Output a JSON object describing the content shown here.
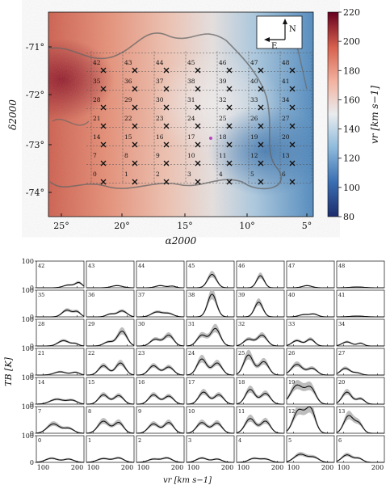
{
  "top_panel": {
    "ylabel": "δ2000",
    "xlabel": "α2000",
    "y_ticks": [
      "-71°",
      "-72°",
      "-73°",
      "-74°"
    ],
    "x_ticks": [
      "25°",
      "20°",
      "15°",
      "10°",
      "5°"
    ],
    "compass": {
      "north": "N",
      "east": "E"
    },
    "colorbar": {
      "label": "vr [km s−1]",
      "ticks": [
        "220",
        "200",
        "180",
        "160",
        "140",
        "120",
        "100",
        "80"
      ],
      "range": [
        80,
        220
      ],
      "colors": [
        "#1c2c6d",
        "#3a6fb2",
        "#8fbbdc",
        "#e9ecef",
        "#f3b3a0",
        "#d6604d",
        "#67001f"
      ]
    },
    "grid_numbers": [
      [
        42,
        43,
        44,
        45,
        46,
        47,
        48
      ],
      [
        35,
        36,
        37,
        38,
        39,
        40,
        41
      ],
      [
        28,
        29,
        30,
        31,
        32,
        33,
        34
      ],
      [
        21,
        22,
        23,
        24,
        25,
        26,
        27
      ],
      [
        14,
        15,
        16,
        17,
        18,
        19,
        20
      ],
      [
        7,
        8,
        9,
        10,
        11,
        12,
        13
      ],
      [
        0,
        1,
        2,
        3,
        4,
        5,
        6
      ]
    ]
  },
  "spectra": {
    "ylabel": "TB [K]",
    "xlabel": "vr [km s−1]",
    "y_ticks": [
      "100",
      "0"
    ],
    "x_ticks": [
      "100",
      "200"
    ],
    "ylim": [
      0,
      100
    ],
    "xlim": [
      80,
      220
    ]
  },
  "chart_data": [
    {
      "type": "heatmap",
      "title": "",
      "xlabel": "α2000",
      "ylabel": "δ2000",
      "xlim": [
        26.5,
        4.5
      ],
      "ylim": [
        -74.6,
        -70.3
      ],
      "colorbar_label": "vr [km s−1]",
      "colorbar_range": [
        80,
        220
      ],
      "field_summary": "velocity field ~175-195 km/s on east (left) side, decreasing to ~110-125 km/s on west (right) side"
    },
    {
      "type": "line",
      "title": "",
      "xlabel": "vr [km s−1]",
      "ylabel": "TB [K]",
      "xlim": [
        80,
        220
      ],
      "ylim": [
        0,
        100
      ],
      "panels": [
        {
          "id": 0,
          "peaks": [
            [
              125,
              15,
              18
            ],
            [
              175,
              12,
              15
            ]
          ]
        },
        {
          "id": 1,
          "peaks": [
            [
              130,
              14,
              18
            ],
            [
              175,
              16,
              15
            ]
          ]
        },
        {
          "id": 2,
          "peaks": [
            [
              130,
              12,
              16
            ],
            [
              170,
              16,
              15
            ]
          ]
        },
        {
          "id": 3,
          "peaks": [
            [
              125,
              16,
              16
            ],
            [
              170,
              12,
              14
            ]
          ]
        },
        {
          "id": 4,
          "peaks": [
            [
              130,
              14,
              15
            ],
            [
              165,
              12,
              15
            ]
          ]
        },
        {
          "id": 5,
          "peaks": [
            [
              120,
              30,
              18
            ],
            [
              160,
              18,
              15
            ]
          ]
        },
        {
          "id": 6,
          "peaks": [
            [
              110,
              28,
              15
            ],
            [
              145,
              14,
              12
            ]
          ]
        },
        {
          "id": 7,
          "peaks": [
            [
              130,
              35,
              18
            ],
            [
              175,
              18,
              15
            ]
          ]
        },
        {
          "id": 8,
          "peaks": [
            [
              130,
              45,
              16
            ],
            [
              175,
              40,
              14
            ]
          ]
        },
        {
          "id": 9,
          "peaks": [
            [
              130,
              35,
              15
            ],
            [
              175,
              40,
              14
            ]
          ]
        },
        {
          "id": 10,
          "peaks": [
            [
              125,
              40,
              15
            ],
            [
              170,
              38,
              14
            ]
          ]
        },
        {
          "id": 11,
          "peaks": [
            [
              120,
              55,
              15
            ],
            [
              165,
              45,
              14
            ]
          ]
        },
        {
          "id": 12,
          "peaks": [
            [
              115,
              85,
              16
            ],
            [
              150,
              90,
              14
            ]
          ]
        },
        {
          "id": 13,
          "peaks": [
            [
              115,
              65,
              14
            ],
            [
              145,
              35,
              12
            ]
          ]
        },
        {
          "id": 14,
          "peaks": [
            [
              140,
              18,
              20
            ],
            [
              185,
              14,
              15
            ]
          ]
        },
        {
          "id": 15,
          "peaks": [
            [
              130,
              35,
              14
            ],
            [
              175,
              32,
              14
            ]
          ]
        },
        {
          "id": 16,
          "peaks": [
            [
              130,
              35,
              14
            ],
            [
              175,
              30,
              14
            ]
          ]
        },
        {
          "id": 17,
          "peaks": [
            [
              130,
              45,
              14
            ],
            [
              175,
              35,
              14
            ]
          ]
        },
        {
          "id": 18,
          "peaks": [
            [
              120,
              55,
              14
            ],
            [
              165,
              40,
              14
            ]
          ]
        },
        {
          "id": 19,
          "peaks": [
            [
              110,
              70,
              18
            ],
            [
              150,
              60,
              15
            ]
          ]
        },
        {
          "id": 20,
          "peaks": [
            [
              110,
              45,
              14
            ],
            [
              150,
              20,
              12
            ]
          ]
        },
        {
          "id": 21,
          "peaks": [
            [
              150,
              12,
              18
            ],
            [
              195,
              10,
              12
            ]
          ]
        },
        {
          "id": 22,
          "peaks": [
            [
              130,
              35,
              14
            ],
            [
              180,
              45,
              14
            ]
          ]
        },
        {
          "id": 23,
          "peaks": [
            [
              130,
              35,
              14
            ],
            [
              175,
              30,
              14
            ]
          ]
        },
        {
          "id": 24,
          "peaks": [
            [
              125,
              60,
              14
            ],
            [
              170,
              45,
              14
            ]
          ]
        },
        {
          "id": 25,
          "peaks": [
            [
              115,
              75,
              14
            ],
            [
              160,
              50,
              14
            ]
          ]
        },
        {
          "id": 26,
          "peaks": [
            [
              110,
              40,
              16
            ],
            [
              155,
              25,
              14
            ]
          ]
        },
        {
          "id": 27,
          "peaks": [
            [
              105,
              25,
              14
            ],
            [
              140,
              8,
              12
            ]
          ]
        },
        {
          "id": 28,
          "peaks": [
            [
              160,
              20,
              16
            ],
            [
              195,
              8,
              10
            ]
          ]
        },
        {
          "id": 29,
          "peaks": [
            [
              145,
              15,
              14
            ],
            [
              185,
              55,
              14
            ]
          ]
        },
        {
          "id": 30,
          "peaks": [
            [
              135,
              25,
              14
            ],
            [
              175,
              40,
              14
            ]
          ]
        },
        {
          "id": 31,
          "peaks": [
            [
              125,
              40,
              14
            ],
            [
              165,
              65,
              14
            ]
          ]
        },
        {
          "id": 32,
          "peaks": [
            [
              115,
              25,
              14
            ],
            [
              155,
              40,
              14
            ]
          ]
        },
        {
          "id": 33,
          "peaks": [
            [
              110,
              20,
              14
            ],
            [
              150,
              25,
              12
            ]
          ]
        },
        {
          "id": 34,
          "peaks": [
            [
              110,
              15,
              14
            ],
            [
              150,
              10,
              10
            ]
          ]
        },
        {
          "id": 35,
          "peaks": [
            [
              170,
              25,
              14
            ],
            [
              200,
              18,
              10
            ]
          ]
        },
        {
          "id": 36,
          "peaks": [
            [
              150,
              10,
              12
            ],
            [
              185,
              22,
              14
            ]
          ]
        },
        {
          "id": 37,
          "peaks": [
            [
              140,
              18,
              16
            ],
            [
              175,
              12,
              14
            ]
          ]
        },
        {
          "id": 38,
          "peaks": [
            [
              155,
              85,
              13
            ]
          ]
        },
        {
          "id": 39,
          "peaks": [
            [
              145,
              55,
              12
            ]
          ]
        },
        {
          "id": 40,
          "peaks": [
            [
              130,
              8,
              14
            ],
            [
              160,
              10,
              12
            ]
          ]
        },
        {
          "id": 41,
          "peaks": [
            [
              140,
              3,
              20
            ]
          ]
        },
        {
          "id": 42,
          "peaks": [
            [
              175,
              10,
              16
            ],
            [
              205,
              18,
              10
            ]
          ]
        },
        {
          "id": 43,
          "peaks": [
            [
              170,
              8,
              16
            ]
          ]
        },
        {
          "id": 44,
          "peaks": [
            [
              150,
              8,
              14
            ],
            [
              185,
              6,
              10
            ]
          ]
        },
        {
          "id": 45,
          "peaks": [
            [
              155,
              50,
              13
            ]
          ]
        },
        {
          "id": 46,
          "peaks": [
            [
              150,
              45,
              11
            ]
          ]
        },
        {
          "id": 47,
          "peaks": [
            [
              140,
              8,
              14
            ]
          ]
        },
        {
          "id": 48,
          "peaks": [
            [
              140,
              3,
              20
            ]
          ]
        }
      ]
    }
  ]
}
